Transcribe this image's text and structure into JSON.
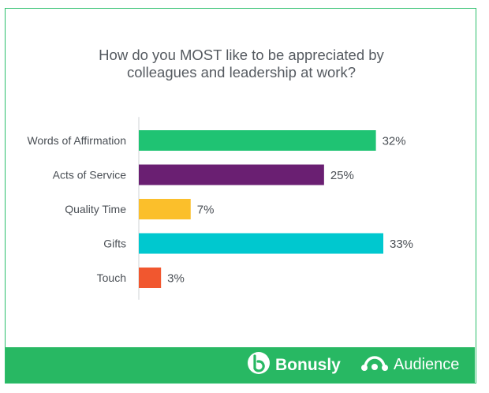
{
  "chart_data": {
    "type": "bar",
    "orientation": "horizontal",
    "title_line1": "How do you MOST like to be appreciated by",
    "title_line2": "colleagues and leadership at work?",
    "categories": [
      "Words of Affirmation",
      "Acts of Service",
      "Quality Time",
      "Gifts",
      "Touch"
    ],
    "values": [
      32,
      25,
      7,
      33,
      3
    ],
    "value_labels": [
      "32%",
      "25%",
      "7%",
      "33%",
      "3%"
    ],
    "colors": [
      "#1fc373",
      "#6a1f72",
      "#fbbf2b",
      "#00c8cf",
      "#f1572f"
    ],
    "xlim": [
      0,
      33
    ],
    "grid": false
  },
  "footer": {
    "bonusly_label": "Bonusly",
    "audience_label": "Audience",
    "background": "#28b863"
  }
}
